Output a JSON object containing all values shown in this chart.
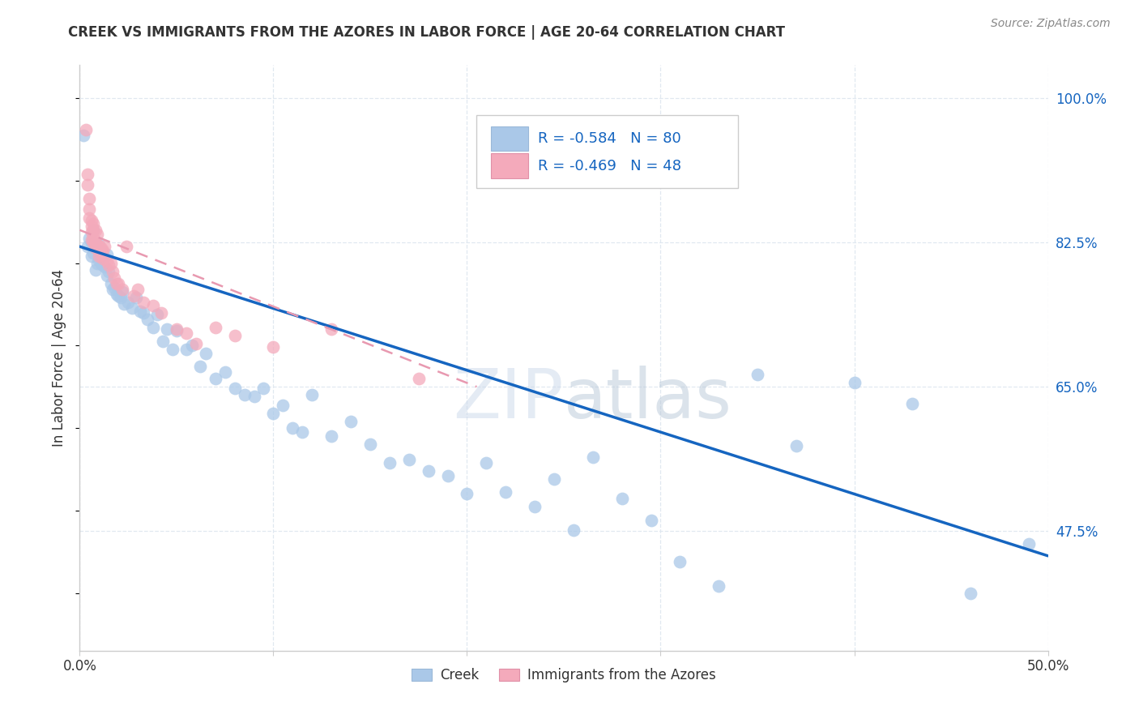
{
  "title": "CREEK VS IMMIGRANTS FROM THE AZORES IN LABOR FORCE | AGE 20-64 CORRELATION CHART",
  "source": "Source: ZipAtlas.com",
  "ylabel": "In Labor Force | Age 20-64",
  "xlim": [
    0.0,
    0.5
  ],
  "ylim": [
    0.33,
    1.04
  ],
  "xtick_positions": [
    0.0,
    0.1,
    0.2,
    0.3,
    0.4,
    0.5
  ],
  "xtick_labels": [
    "0.0%",
    "",
    "",
    "",
    "",
    "50.0%"
  ],
  "yticks_right": [
    0.475,
    0.65,
    0.825,
    1.0
  ],
  "yticklabels_right": [
    "47.5%",
    "65.0%",
    "82.5%",
    "100.0%"
  ],
  "creek_color": "#aac8e8",
  "creek_edge_color": "#aac8e8",
  "azores_color": "#f4aabb",
  "azores_edge_color": "#f4aabb",
  "creek_line_color": "#1565c0",
  "azores_line_color": "#e899b0",
  "creek_R": -0.584,
  "creek_N": 80,
  "azores_R": -0.469,
  "azores_N": 48,
  "text_color": "#333333",
  "axis_tick_color": "#1565c0",
  "grid_color": "#e0e8f0",
  "background_color": "#ffffff",
  "creek_line_x": [
    0.0,
    0.5
  ],
  "creek_line_y": [
    0.82,
    0.445
  ],
  "azores_line_x": [
    0.0,
    0.205
  ],
  "azores_line_y": [
    0.84,
    0.65
  ],
  "creek_scatter_x": [
    0.002,
    0.004,
    0.005,
    0.006,
    0.006,
    0.007,
    0.007,
    0.008,
    0.008,
    0.009,
    0.009,
    0.01,
    0.01,
    0.011,
    0.011,
    0.012,
    0.012,
    0.013,
    0.014,
    0.014,
    0.015,
    0.016,
    0.017,
    0.018,
    0.019,
    0.02,
    0.021,
    0.022,
    0.023,
    0.025,
    0.027,
    0.029,
    0.031,
    0.033,
    0.035,
    0.038,
    0.04,
    0.043,
    0.045,
    0.048,
    0.05,
    0.055,
    0.058,
    0.062,
    0.065,
    0.07,
    0.075,
    0.08,
    0.085,
    0.09,
    0.095,
    0.1,
    0.105,
    0.11,
    0.115,
    0.12,
    0.13,
    0.14,
    0.15,
    0.16,
    0.17,
    0.18,
    0.19,
    0.2,
    0.21,
    0.22,
    0.235,
    0.245,
    0.255,
    0.265,
    0.28,
    0.295,
    0.31,
    0.33,
    0.35,
    0.37,
    0.4,
    0.43,
    0.46,
    0.49
  ],
  "creek_scatter_y": [
    0.955,
    0.82,
    0.83,
    0.825,
    0.808,
    0.84,
    0.812,
    0.792,
    0.822,
    0.818,
    0.8,
    0.803,
    0.822,
    0.815,
    0.8,
    0.798,
    0.81,
    0.796,
    0.81,
    0.785,
    0.79,
    0.775,
    0.768,
    0.77,
    0.762,
    0.76,
    0.758,
    0.765,
    0.75,
    0.752,
    0.745,
    0.758,
    0.742,
    0.74,
    0.732,
    0.722,
    0.738,
    0.705,
    0.72,
    0.695,
    0.718,
    0.695,
    0.7,
    0.675,
    0.69,
    0.66,
    0.668,
    0.648,
    0.64,
    0.638,
    0.648,
    0.618,
    0.628,
    0.6,
    0.595,
    0.64,
    0.59,
    0.608,
    0.58,
    0.558,
    0.562,
    0.548,
    0.542,
    0.52,
    0.558,
    0.522,
    0.505,
    0.538,
    0.476,
    0.565,
    0.515,
    0.488,
    0.438,
    0.408,
    0.665,
    0.578,
    0.655,
    0.63,
    0.4,
    0.46
  ],
  "azores_scatter_x": [
    0.003,
    0.004,
    0.004,
    0.005,
    0.005,
    0.005,
    0.006,
    0.006,
    0.006,
    0.006,
    0.007,
    0.007,
    0.007,
    0.007,
    0.008,
    0.008,
    0.008,
    0.009,
    0.009,
    0.01,
    0.01,
    0.011,
    0.011,
    0.012,
    0.012,
    0.013,
    0.014,
    0.015,
    0.016,
    0.017,
    0.018,
    0.019,
    0.02,
    0.022,
    0.024,
    0.028,
    0.03,
    0.033,
    0.038,
    0.042,
    0.05,
    0.055,
    0.06,
    0.07,
    0.08,
    0.1,
    0.13,
    0.175
  ],
  "azores_scatter_y": [
    0.962,
    0.908,
    0.895,
    0.878,
    0.865,
    0.855,
    0.852,
    0.845,
    0.838,
    0.828,
    0.848,
    0.84,
    0.83,
    0.825,
    0.84,
    0.825,
    0.818,
    0.835,
    0.822,
    0.82,
    0.808,
    0.818,
    0.81,
    0.815,
    0.805,
    0.82,
    0.802,
    0.798,
    0.8,
    0.79,
    0.782,
    0.775,
    0.775,
    0.768,
    0.82,
    0.76,
    0.768,
    0.752,
    0.748,
    0.74,
    0.72,
    0.715,
    0.702,
    0.722,
    0.712,
    0.698,
    0.72,
    0.66
  ]
}
